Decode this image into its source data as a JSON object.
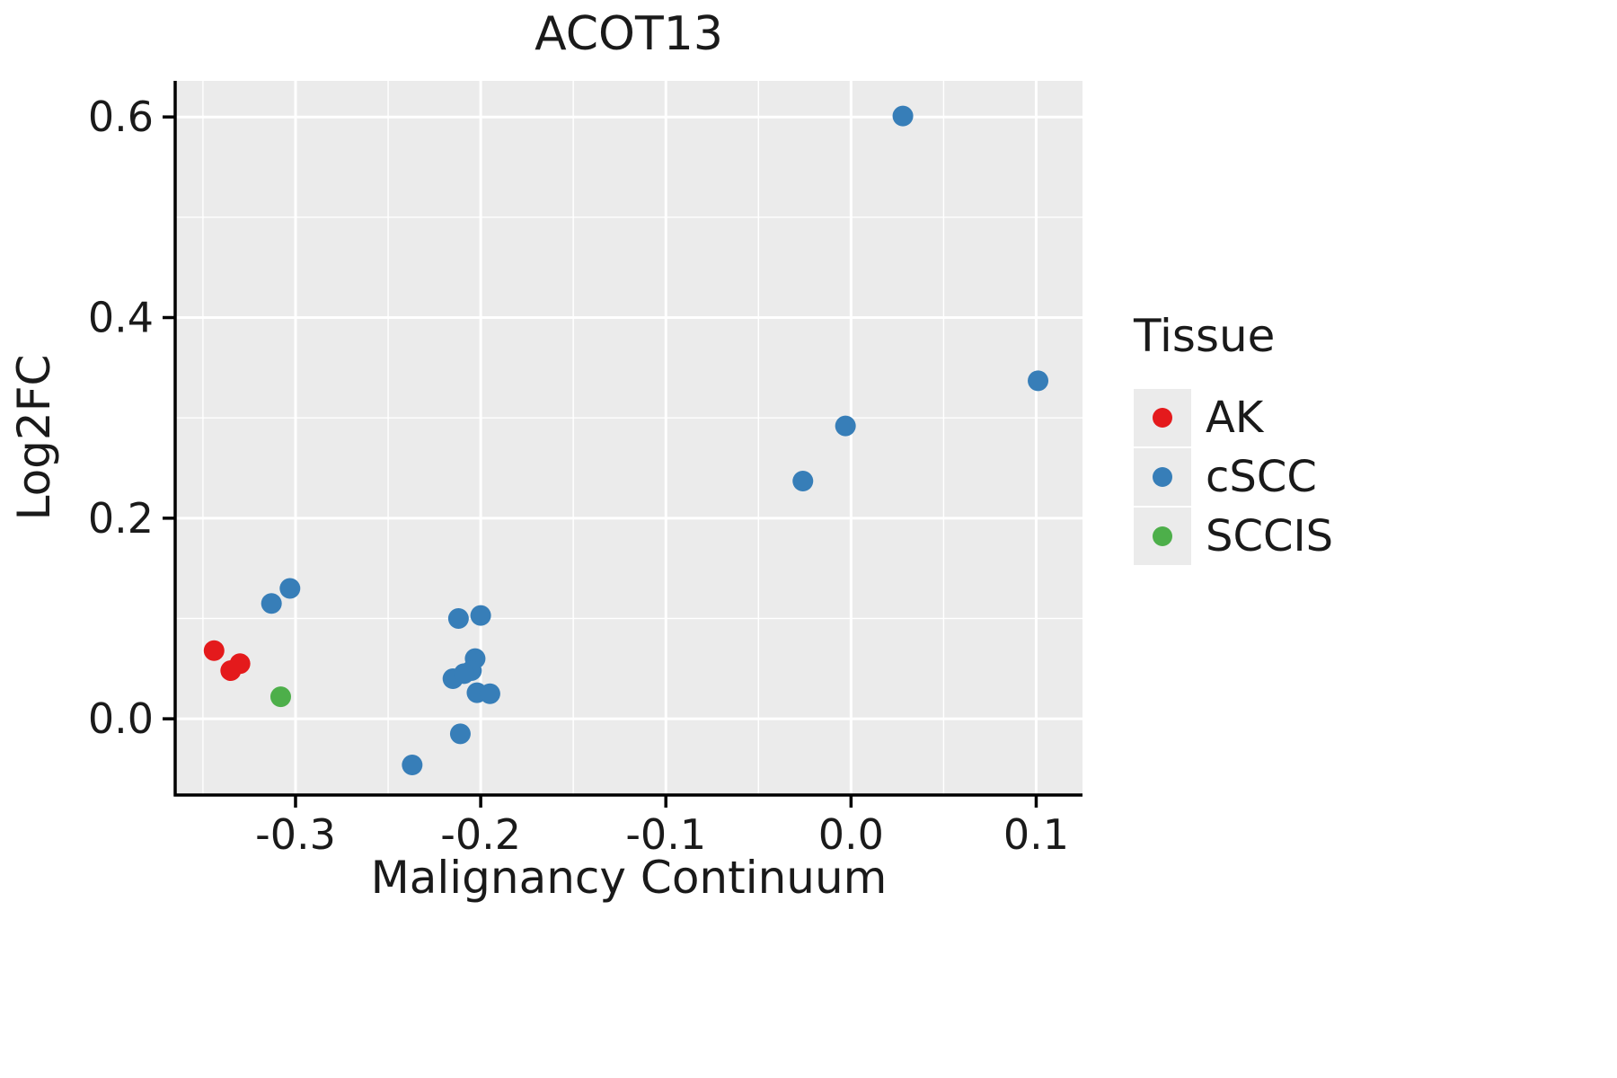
{
  "title": "ACOT13",
  "axes": {
    "x_label": "Malignancy Continuum",
    "y_label": "Log2FC"
  },
  "legend": {
    "title": "Tissue",
    "items": [
      {
        "label": "AK",
        "color": "#e41a1c"
      },
      {
        "label": "cSCC",
        "color": "#377eb8"
      },
      {
        "label": "SCCIS",
        "color": "#4daf4a"
      }
    ]
  },
  "colors": {
    "panel_bg": "#ebebeb",
    "grid": "#ffffff",
    "axis": "#000000",
    "text": "#1a1a1a"
  },
  "chart_data": {
    "type": "scatter",
    "title": "ACOT13",
    "xlabel": "Malignancy Continuum",
    "ylabel": "Log2FC",
    "xlim": [
      -0.365,
      0.125
    ],
    "ylim": [
      -0.076,
      0.636
    ],
    "x_ticks": [
      -0.3,
      -0.2,
      -0.1,
      0.0,
      0.1
    ],
    "x_tick_labels": [
      "-0.3",
      "-0.2",
      "-0.1",
      "0.0",
      "0.1"
    ],
    "x_minor_ticks": [
      -0.35,
      -0.25,
      -0.15,
      -0.05,
      0.05
    ],
    "y_ticks": [
      0.0,
      0.2,
      0.4,
      0.6
    ],
    "y_tick_labels": [
      "0.0",
      "0.2",
      "0.4",
      "0.6"
    ],
    "y_minor_ticks": [
      0.1,
      0.3,
      0.5
    ],
    "grid": true,
    "legend_position": "right",
    "series": [
      {
        "name": "AK",
        "color": "#e41a1c",
        "points": [
          [
            -0.344,
            0.068
          ],
          [
            -0.335,
            0.048
          ],
          [
            -0.33,
            0.055
          ]
        ]
      },
      {
        "name": "cSCC",
        "color": "#377eb8",
        "points": [
          [
            -0.313,
            0.115
          ],
          [
            -0.303,
            0.13
          ],
          [
            -0.237,
            -0.046
          ],
          [
            -0.212,
            0.1
          ],
          [
            -0.2,
            0.103
          ],
          [
            -0.203,
            0.06
          ],
          [
            -0.205,
            0.048
          ],
          [
            -0.215,
            0.04
          ],
          [
            -0.209,
            0.045
          ],
          [
            -0.202,
            0.026
          ],
          [
            -0.195,
            0.025
          ],
          [
            -0.211,
            -0.015
          ],
          [
            -0.026,
            0.237
          ],
          [
            -0.003,
            0.292
          ],
          [
            0.028,
            0.601
          ],
          [
            0.101,
            0.337
          ]
        ]
      },
      {
        "name": "SCCIS",
        "color": "#4daf4a",
        "points": [
          [
            -0.308,
            0.022
          ]
        ]
      }
    ]
  }
}
